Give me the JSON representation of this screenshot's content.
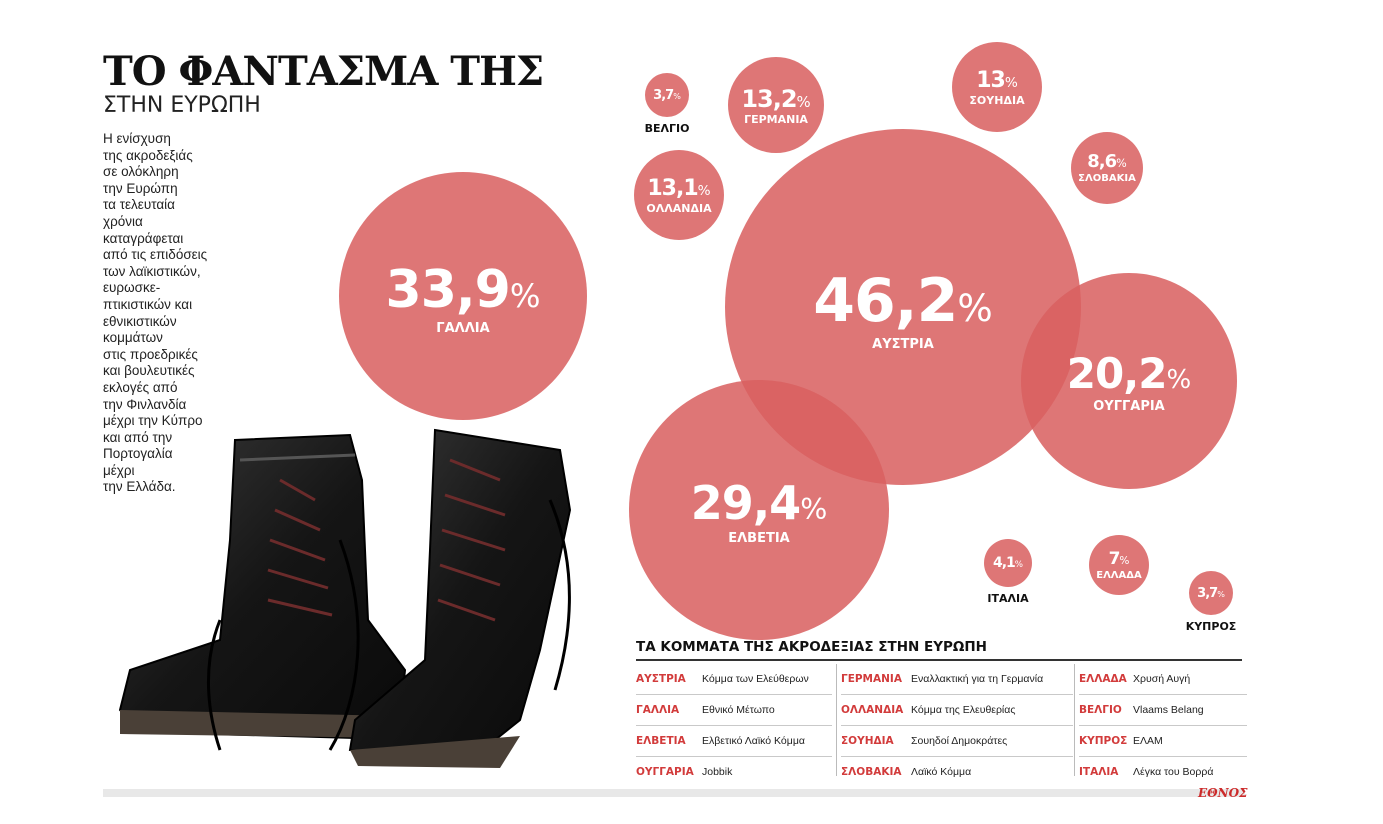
{
  "header": {
    "title": "ΤΟ ΦΑΝΤΑΣΜΑ ΤΗΣ",
    "subtitle": "ΣΤΗΝ ΕΥΡΩΠΗ"
  },
  "intro_lines": [
    "Η ενίσχυση",
    "της ακροδεξιάς",
    "σε ολόκληρη",
    "την Ευρώπη",
    "τα τελευταία",
    "χρόνια",
    "καταγράφεται",
    "από τις επιδόσεις",
    "των λαϊκιστικών,",
    "ευρωσκε-",
    "πτικιστικών και",
    "εθνικιστικών",
    "κομμάτων",
    "στις προεδρικές",
    "και βουλευτικές",
    "εκλογές από",
    "την Φινλανδία",
    "μέχρι την Κύπρο",
    "και από την",
    "Πορτογαλία",
    "μέχρι",
    "την Ελλάδα."
  ],
  "chart_data": {
    "type": "bubble",
    "unit": "%",
    "bubble_color": "#d95f5f",
    "points": [
      {
        "country": "ΑΥΣΤΡΙΑ",
        "value": 46.2,
        "value_label": "46,2"
      },
      {
        "country": "ΓΑΛΛΙΑ",
        "value": 33.9,
        "value_label": "33,9"
      },
      {
        "country": "ΕΛΒΕΤΙΑ",
        "value": 29.4,
        "value_label": "29,4"
      },
      {
        "country": "ΟΥΓΓΑΡΙΑ",
        "value": 20.2,
        "value_label": "20,2"
      },
      {
        "country": "ΓΕΡΜΑΝΙΑ",
        "value": 13.2,
        "value_label": "13,2"
      },
      {
        "country": "ΟΛΛΑΝΔΙΑ",
        "value": 13.1,
        "value_label": "13,1"
      },
      {
        "country": "ΣΟΥΗΔΙΑ",
        "value": 13,
        "value_label": "13"
      },
      {
        "country": "ΣΛΟΒΑΚΙΑ",
        "value": 8.6,
        "value_label": "8,6"
      },
      {
        "country": "ΕΛΛΑΔΑ",
        "value": 7,
        "value_label": "7"
      },
      {
        "country": "ΙΤΑΛΙΑ",
        "value": 4.1,
        "value_label": "4,1"
      },
      {
        "country": "ΒΕΛΓΙΟ",
        "value": 3.7,
        "value_label": "3,7"
      },
      {
        "country": "ΚΥΠΡΟΣ",
        "value": 3.7,
        "value_label": "3,7"
      }
    ]
  },
  "parties_table": {
    "title": "ΤΑ ΚΟΜΜΑΤΑ ΤΗΣ ΑΚΡΟΔΕΞΙΑΣ ΣΤΗΝ ΕΥΡΩΠΗ",
    "columns": [
      [
        {
          "country": "ΑΥΣΤΡΙΑ",
          "party": "Κόμμα των Ελεύθερων"
        },
        {
          "country": "ΓΑΛΛΙΑ",
          "party": "Εθνικό Μέτωπο"
        },
        {
          "country": "ΕΛΒΕΤΙΑ",
          "party": "Ελβετικό Λαϊκό Κόμμα"
        },
        {
          "country": "ΟΥΓΓΑΡΙΑ",
          "party": "Jobbik"
        }
      ],
      [
        {
          "country": "ΓΕΡΜΑΝΙΑ",
          "party": "Εναλλακτική για τη Γερμανία"
        },
        {
          "country": "ΟΛΛΑΝΔΙΑ",
          "party": "Κόμμα της Ελευθερίας"
        },
        {
          "country": "ΣΟΥΗΔΙΑ",
          "party": "Σουηδοί Δημοκράτες"
        },
        {
          "country": "ΣΛΟΒΑΚΙΑ",
          "party": "Λαϊκό Κόμμα"
        }
      ],
      [
        {
          "country": "ΕΛΛΑΔΑ",
          "party": "Χρυσή Αυγή"
        },
        {
          "country": "ΒΕΛΓΙΟ",
          "party": "Vlaams Belang"
        },
        {
          "country": "ΚΥΠΡΟΣ",
          "party": "ΕΛΑΜ"
        },
        {
          "country": "ΙΤΑΛΙΑ",
          "party": "Λέγκα του Βορρά"
        }
      ]
    ]
  },
  "footer": {
    "brand": "ΕΘΝΟΣ"
  }
}
